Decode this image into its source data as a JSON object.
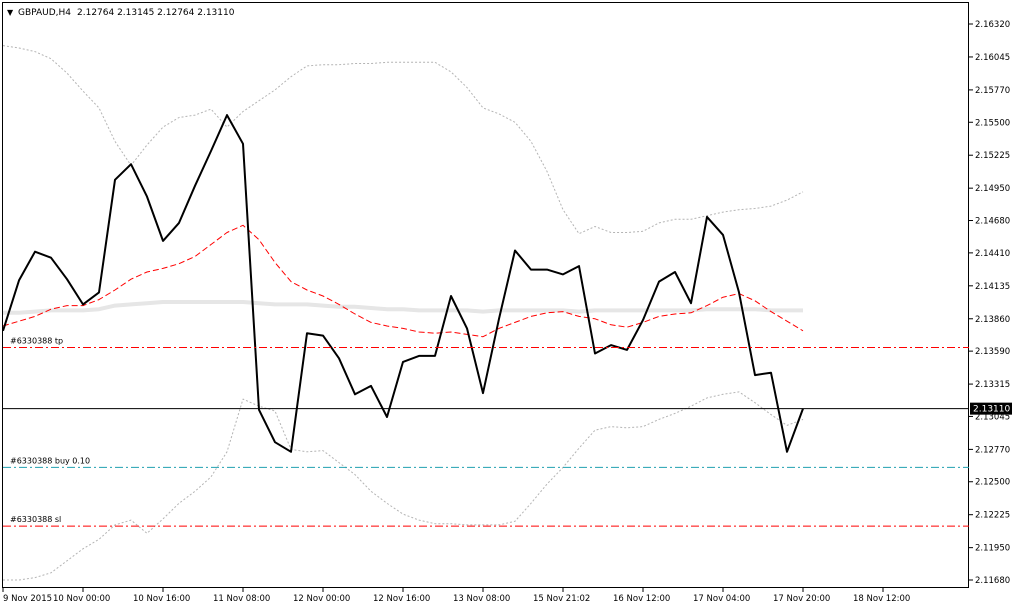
{
  "header": {
    "arrow_glyph": "▼",
    "symbol_tf": "GBPAUD,H4",
    "ohlc": "2.12764 2.13145 2.12764 2.13110"
  },
  "chart_data": {
    "type": "line",
    "symbol": "GBPAUD",
    "timeframe": "H4",
    "ylim": [
      2.1168,
      2.1632
    ],
    "y_ticks": [
      "2.16320",
      "2.16045",
      "2.15770",
      "2.15500",
      "2.15225",
      "2.14950",
      "2.14680",
      "2.14410",
      "2.14135",
      "2.13860",
      "2.13590",
      "2.13315",
      "2.13045",
      "2.12770",
      "2.12500",
      "2.12225",
      "2.11950",
      "2.11680"
    ],
    "y_tick_values": [
      2.1632,
      2.16045,
      2.1577,
      2.155,
      2.15225,
      2.1495,
      2.1468,
      2.1441,
      2.14135,
      2.1386,
      2.1359,
      2.13315,
      2.13045,
      2.1277,
      2.125,
      2.12225,
      2.1195,
      2.1168
    ],
    "x_ticks": [
      "9 Nov 2015",
      "10 Nov 00:00",
      "10 Nov 16:00",
      "11 Nov 08:00",
      "12 Nov 00:00",
      "12 Nov 16:00",
      "13 Nov 08:00",
      "15 Nov 21:02",
      "16 Nov 12:00",
      "17 Nov 04:00",
      "17 Nov 20:00",
      "18 Nov 12:00"
    ],
    "x_tick_bar_index": [
      0,
      5,
      10,
      15,
      20,
      25,
      30,
      35,
      40,
      45,
      50,
      55
    ],
    "current_price_label": "2.13110",
    "current_price": 2.1311,
    "series": [
      {
        "name": "",
        "color": "#000000",
        "values": [
          2.1376,
          2.1418,
          2.1442,
          2.1437,
          2.1419,
          2.1398,
          2.1408,
          2.1502,
          2.1515,
          2.1488,
          2.1451,
          2.1466,
          2.1497,
          2.1526,
          2.1556,
          2.1532,
          2.131,
          2.1283,
          2.1275,
          2.1374,
          2.1372,
          2.1353,
          2.1323,
          2.133,
          2.1304,
          2.135,
          2.1355,
          2.1355,
          2.1405,
          2.1378,
          2.1324,
          2.1386,
          2.1443,
          2.1427,
          2.1427,
          2.1423,
          2.143,
          2.1357,
          2.1364,
          2.136,
          2.1385,
          2.1417,
          2.1425,
          2.1399,
          2.1471,
          2.1456,
          2.1408,
          2.1339,
          2.1341,
          2.1275,
          2.1311
        ]
      },
      {
        "name": "",
        "color": "#ff0000",
        "values": [
          2.138,
          2.1384,
          2.1388,
          2.1394,
          2.1397,
          2.1397,
          2.1402,
          2.141,
          2.1419,
          2.1425,
          2.1428,
          2.1432,
          2.1438,
          2.1448,
          2.1458,
          2.1464,
          2.1452,
          2.1433,
          2.1417,
          2.141,
          2.1405,
          2.1398,
          2.139,
          2.1383,
          2.138,
          2.1378,
          2.1375,
          2.1374,
          2.1375,
          2.1373,
          2.1371,
          2.1378,
          2.1383,
          2.1388,
          2.1391,
          2.1392,
          2.1388,
          2.1386,
          2.1381,
          2.1379,
          2.1383,
          2.1388,
          2.139,
          2.1391,
          2.1397,
          2.1404,
          2.1407,
          2.1401,
          2.1392,
          2.1384,
          2.1376
        ]
      },
      {
        "name": "",
        "color": "#e6e6e6",
        "values": [
          2.1391,
          2.1391,
          2.1392,
          2.1393,
          2.1393,
          2.1393,
          2.1394,
          2.1397,
          2.1398,
          2.1399,
          2.14,
          2.14,
          2.14,
          2.14,
          2.14,
          2.14,
          2.1399,
          2.1398,
          2.1398,
          2.1398,
          2.1397,
          2.1396,
          2.1396,
          2.1395,
          2.1394,
          2.1394,
          2.1393,
          2.1393,
          2.1393,
          2.1393,
          2.1392,
          2.1393,
          2.1393,
          2.1393,
          2.1393,
          2.1393,
          2.1392,
          2.1393,
          2.1393,
          2.1393,
          2.1393,
          2.1393,
          2.1393,
          2.1393,
          2.1394,
          2.1394,
          2.1394,
          2.1394,
          2.1393,
          2.1393,
          2.1393
        ]
      },
      {
        "name": "",
        "color": "#b4b4b4",
        "values": [
          2.1614,
          2.1612,
          2.1609,
          2.1603,
          2.1591,
          2.1576,
          2.1562,
          2.1534,
          2.1514,
          2.1531,
          2.1546,
          2.1554,
          2.1556,
          2.1561,
          2.1546,
          2.1559,
          2.1568,
          2.1577,
          2.1588,
          2.1597,
          2.1598,
          2.1598,
          2.1599,
          2.1599,
          2.16,
          2.16,
          2.16,
          2.16,
          2.1592,
          2.1579,
          2.1562,
          2.1557,
          2.155,
          2.1534,
          2.1509,
          2.1477,
          2.1457,
          2.1463,
          2.1458,
          2.1458,
          2.1459,
          2.1466,
          2.1469,
          2.1469,
          2.1472,
          2.1475,
          2.1477,
          2.1478,
          2.148,
          2.1485,
          2.1492
        ]
      },
      {
        "name": "",
        "color": "#b4b4b4",
        "values": [
          2.1168,
          2.1168,
          2.117,
          2.1174,
          2.1184,
          2.1194,
          2.1202,
          2.1214,
          2.1218,
          2.1207,
          2.1219,
          2.1232,
          2.1242,
          2.1254,
          2.1275,
          2.1319,
          2.1313,
          2.1309,
          2.1277,
          2.1275,
          2.1276,
          2.1266,
          2.1256,
          2.1242,
          2.1232,
          2.1223,
          2.1218,
          2.1215,
          2.1215,
          2.1214,
          2.1214,
          2.1214,
          2.1217,
          2.1232,
          2.1248,
          2.1262,
          2.1278,
          2.1293,
          2.1296,
          2.1295,
          2.1296,
          2.1302,
          2.1307,
          2.1313,
          2.132,
          2.1323,
          2.1325,
          2.1316,
          2.1306,
          2.1297,
          2.1302
        ]
      }
    ],
    "levels": [
      {
        "label": "#6330388 tp",
        "value": 2.1362,
        "color": "#ff0000"
      },
      {
        "label": "#6330388 buy 0.10",
        "value": 2.1262,
        "color": "#20a0b0"
      },
      {
        "label": "#6330388 sl",
        "value": 2.1213,
        "color": "#ff0000"
      }
    ]
  }
}
